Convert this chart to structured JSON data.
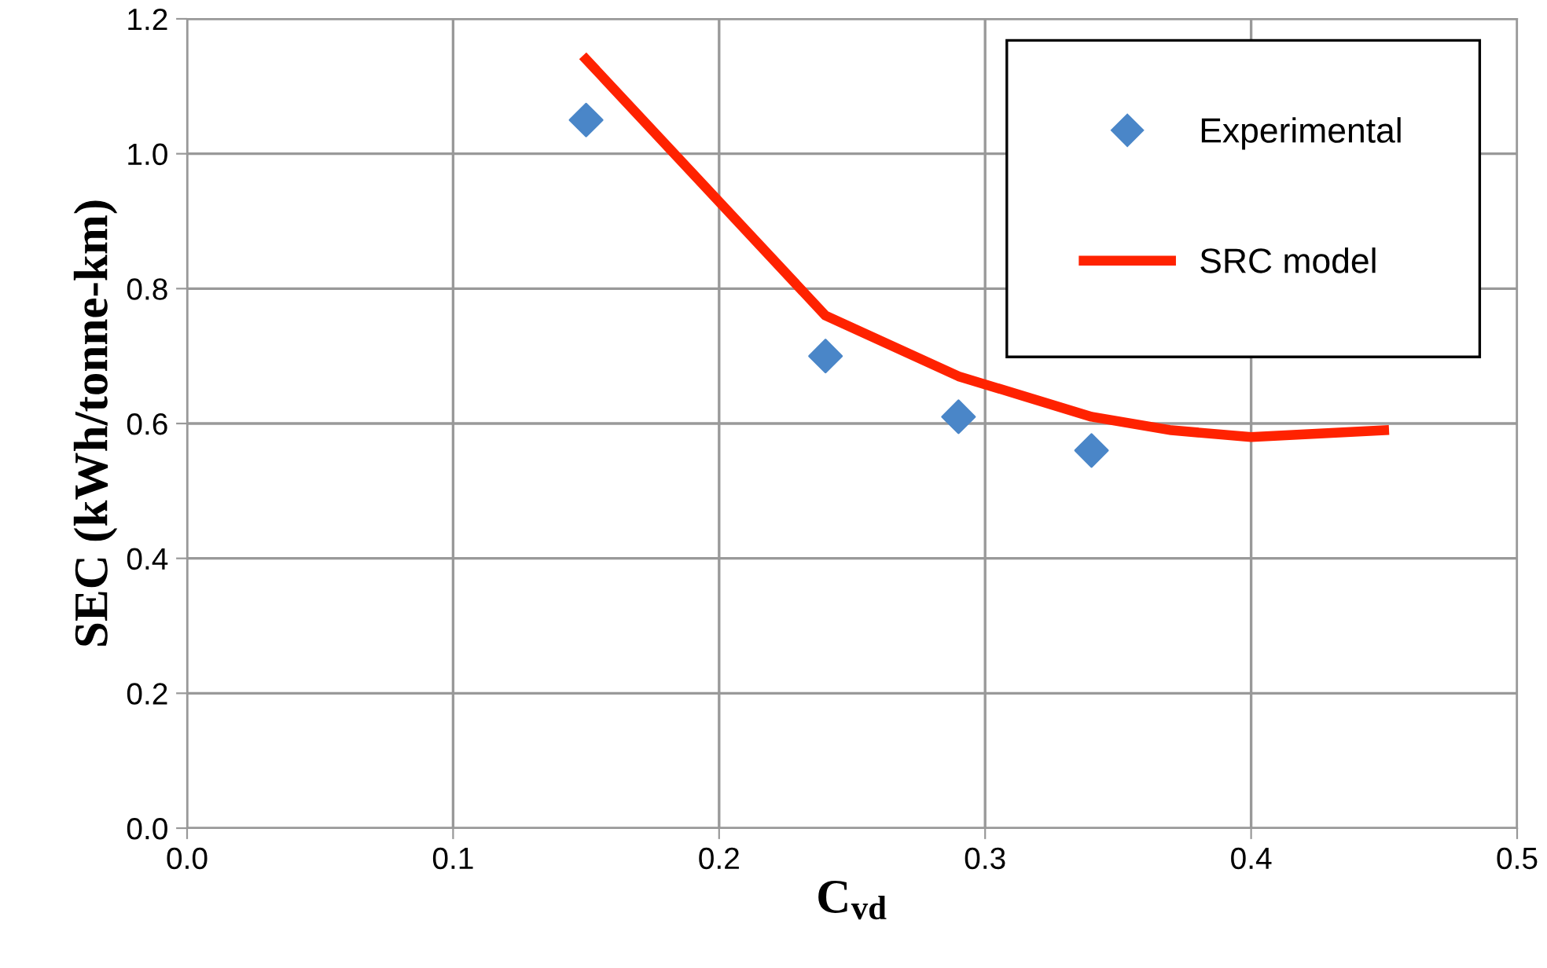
{
  "chart_data": {
    "type": "scatter",
    "xlabel": "C$_{vd}$",
    "ylabel": "SEC (kWh/tonne-km)",
    "xlim": [
      0,
      0.5
    ],
    "xticks": [
      {
        "value": 0,
        "label": "0.0"
      },
      0.1,
      0.2,
      0.3,
      0.4,
      0.5
    ],
    "ylim": [
      0,
      1.2
    ],
    "yticks": [
      {
        "value": 0,
        "label": "0.0"
      },
      0.2,
      0.4,
      0.6,
      0.8,
      {
        "value": 1,
        "label": "1.0"
      },
      1.2
    ],
    "grid": true,
    "legend": "top right",
    "series": [
      {
        "name": "Experimental",
        "marker": "diamond",
        "color": "#4a86c8",
        "x": [
          0.15,
          0.24,
          0.29,
          0.34
        ],
        "values": [
          1.05,
          0.7,
          0.61,
          0.56
        ]
      },
      {
        "name": "SRC model",
        "type": "line",
        "marker": "none",
        "line_style": "solid",
        "color": "#ff2200",
        "x": [
          0.15,
          0.24,
          0.29,
          0.34,
          0.37,
          0.4,
          0.45
        ],
        "values": [
          1.14,
          0.76,
          0.67,
          0.61,
          0.59,
          0.58,
          0.59
        ]
      }
    ]
  }
}
